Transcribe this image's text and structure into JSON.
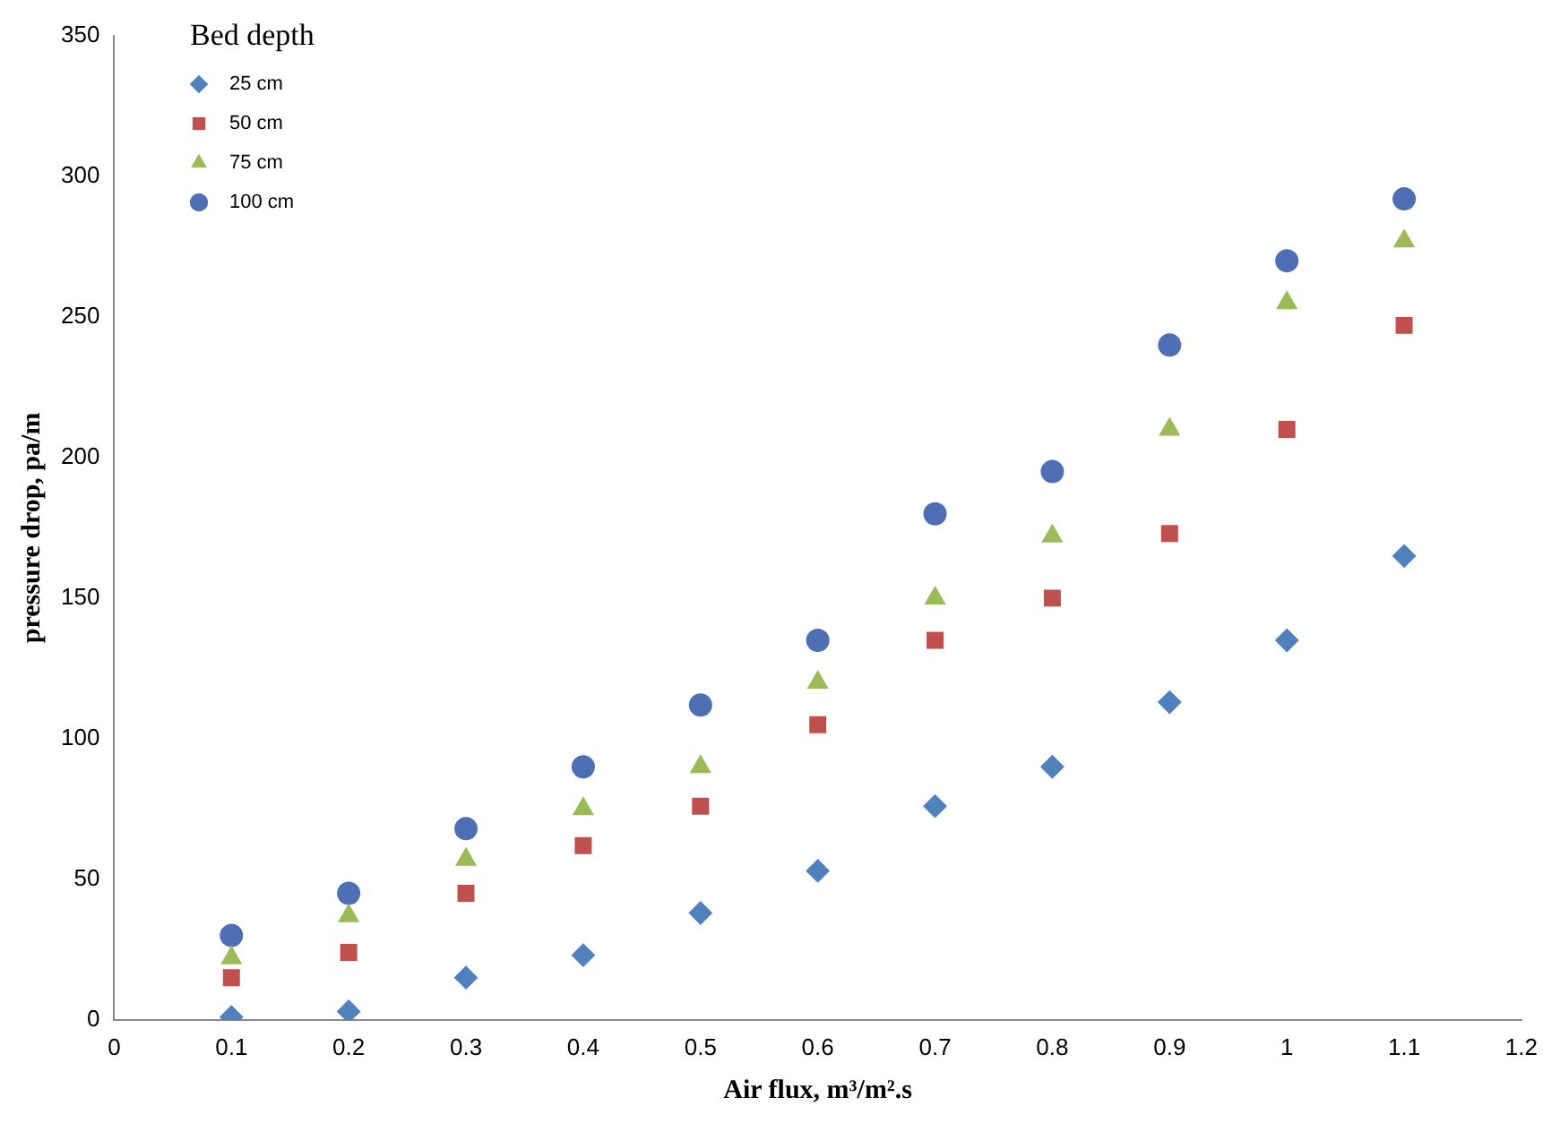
{
  "chart_data": {
    "type": "scatter",
    "xlabel": "Air flux, m³/m².s",
    "ylabel": "pressure drop, pa/m",
    "legend_title": "Bed depth",
    "legend": "top left",
    "grid": false,
    "x": [
      0.1,
      0.2,
      0.3,
      0.4,
      0.5,
      0.6,
      0.7,
      0.8,
      0.9,
      1.0,
      1.1
    ],
    "xlim": [
      0,
      1.2
    ],
    "xticks": [
      0,
      0.1,
      0.2,
      0.3,
      0.4,
      0.5,
      0.6,
      0.7,
      0.8,
      0.9,
      1,
      1.1,
      1.2
    ],
    "ylim": [
      0,
      350
    ],
    "yticks": [
      0,
      50,
      100,
      150,
      200,
      250,
      300,
      350
    ],
    "series": [
      {
        "name": "25 cm",
        "color": "#4f81bd",
        "marker": "diamond",
        "values": [
          1,
          3,
          15,
          23,
          38,
          53,
          76,
          90,
          113,
          135,
          165
        ]
      },
      {
        "name": "50 cm",
        "color": "#c0504d",
        "marker": "square",
        "values": [
          15,
          24,
          45,
          62,
          76,
          105,
          135,
          150,
          173,
          210,
          247
        ]
      },
      {
        "name": "75 cm",
        "color": "#9bbb59",
        "marker": "triangle",
        "values": [
          22,
          37,
          57,
          75,
          90,
          120,
          150,
          172,
          210,
          255,
          277
        ]
      },
      {
        "name": "100 cm",
        "color": "#4f6fb5",
        "marker": "circle",
        "values": [
          30,
          45,
          68,
          90,
          112,
          135,
          180,
          195,
          240,
          270,
          292
        ]
      }
    ]
  }
}
